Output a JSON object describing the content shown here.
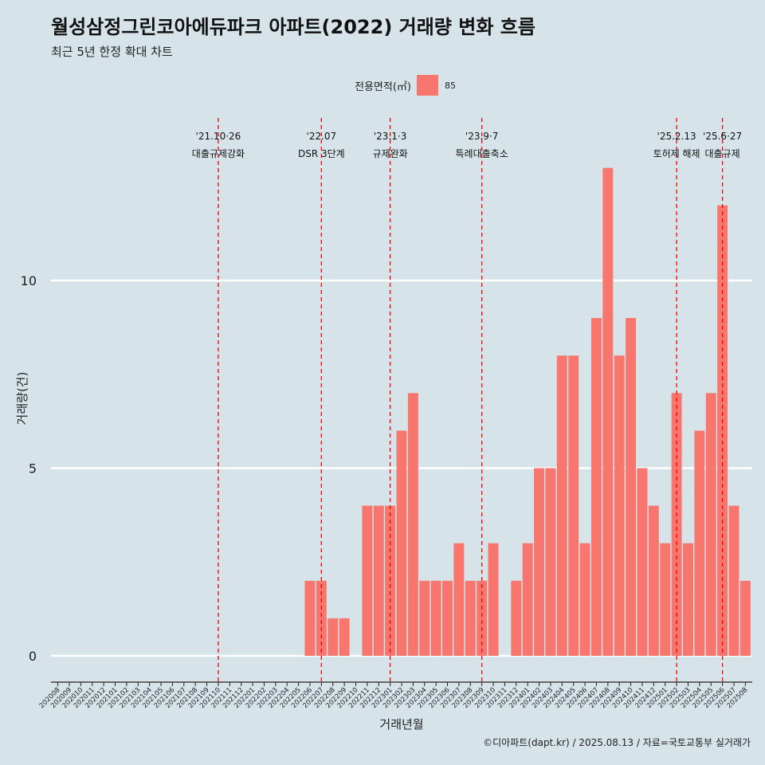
{
  "title": "월성삼정그린코아에듀파크 아파트(2022) 거래량 변화 흐름",
  "subtitle": "최근 5년 한정 확대 차트",
  "caption": "©디아파트(dapt.kr) / 2025.08.13 / 자료=국토교통부 실거래가",
  "colors": {
    "bar": "#f8766d",
    "vline": "#ff0000",
    "grid": "#ffffff",
    "background": "#d6e4ea"
  },
  "chart_data": {
    "type": "bar",
    "xlabel": "거래년월",
    "ylabel": "거래량(건)",
    "ylim": [
      0,
      14.4
    ],
    "yticks": [
      0,
      5,
      10
    ],
    "legend": {
      "title": "전용면적(㎡)",
      "placement": "top-center",
      "entries": [
        "85"
      ]
    },
    "grid": "horizontal-major",
    "categories": [
      "202008",
      "202009",
      "202010",
      "202011",
      "202012",
      "202101",
      "202102",
      "202103",
      "202104",
      "202105",
      "202106",
      "202107",
      "202108",
      "202109",
      "202110",
      "202111",
      "202112",
      "202201",
      "202202",
      "202203",
      "202204",
      "202205",
      "202206",
      "202207",
      "202208",
      "202209",
      "202210",
      "202211",
      "202212",
      "202301",
      "202302",
      "202303",
      "202304",
      "202305",
      "202306",
      "202307",
      "202308",
      "202309",
      "202310",
      "202311",
      "202312",
      "202401",
      "202402",
      "202403",
      "202404",
      "202405",
      "202406",
      "202407",
      "202408",
      "202409",
      "202410",
      "202411",
      "202412",
      "202501",
      "202502",
      "202503",
      "202504",
      "202505",
      "202506",
      "202507",
      "202508"
    ],
    "series": [
      {
        "name": "85",
        "values": [
          0,
          0,
          0,
          0,
          0,
          0,
          0,
          0,
          0,
          0,
          0,
          0,
          0,
          0,
          0,
          0,
          0,
          0,
          0,
          0,
          0,
          0,
          2,
          2,
          1,
          1,
          0,
          4,
          4,
          4,
          6,
          7,
          2,
          2,
          2,
          3,
          2,
          2,
          3,
          0,
          2,
          3,
          5,
          5,
          8,
          8,
          3,
          9,
          13,
          8,
          9,
          5,
          4,
          3,
          7,
          3,
          6,
          7,
          12,
          4,
          2
        ]
      }
    ],
    "annotations": [
      {
        "index": 14,
        "line1": "'21.10·26",
        "line2": "대출규제강화"
      },
      {
        "index": 23,
        "line1": "'22.07",
        "line2": "DSR 3단계"
      },
      {
        "index": 29,
        "line1": "'23.1·3",
        "line2": "규제완화"
      },
      {
        "index": 37,
        "line1": "'23.9·7",
        "line2": "특례대출축소"
      },
      {
        "index": 54,
        "line1": "'25.2.13",
        "line2": "토허제 해제"
      },
      {
        "index": 58,
        "line1": "'25.6·27",
        "line2": "대출규제"
      }
    ]
  }
}
